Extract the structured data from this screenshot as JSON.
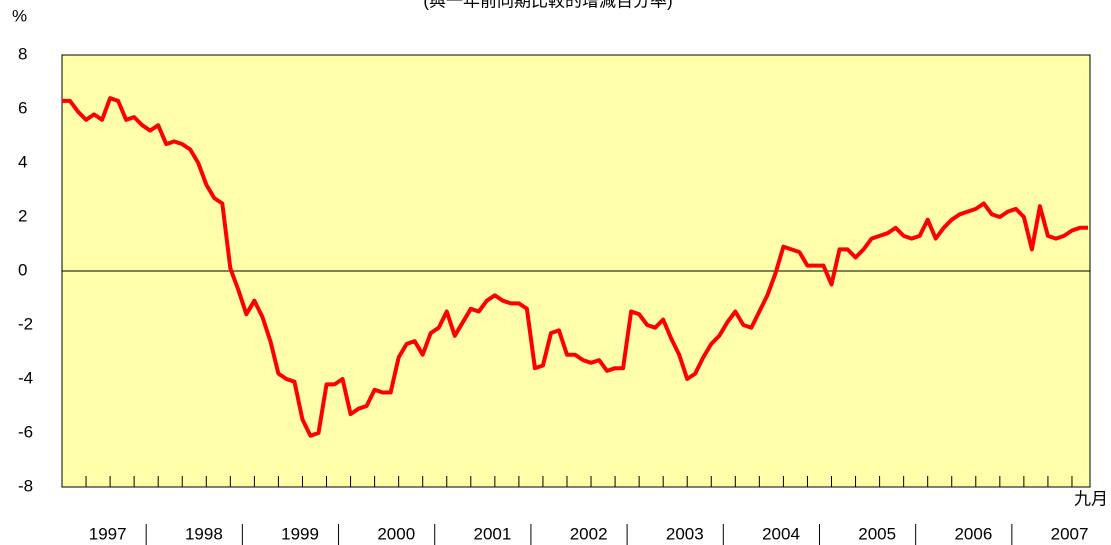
{
  "chart_data": {
    "type": "line",
    "title": "(與一年前同期比較的增減百分率)",
    "y_unit": "%",
    "end_label": "九月",
    "categories": [
      null,
      null,
      null,
      null,
      null,
      "1997",
      null,
      null,
      null,
      null,
      null,
      null,
      null,
      null,
      null,
      null,
      null,
      "1998",
      null,
      null,
      null,
      null,
      null,
      null,
      null,
      null,
      null,
      null,
      null,
      "1999",
      null,
      null,
      null,
      null,
      null,
      null,
      null,
      null,
      null,
      null,
      null,
      "2000",
      null,
      null,
      null,
      null,
      null,
      null,
      null,
      null,
      null,
      null,
      null,
      "2001",
      null,
      null,
      null,
      null,
      null,
      null,
      null,
      null,
      null,
      null,
      null,
      "2002",
      null,
      null,
      null,
      null,
      null,
      null,
      null,
      null,
      null,
      null,
      null,
      "2003",
      null,
      null,
      null,
      null,
      null,
      null,
      null,
      null,
      null,
      null,
      null,
      "2004",
      null,
      null,
      null,
      null,
      null,
      null,
      null,
      null,
      null,
      null,
      null,
      "2005",
      null,
      null,
      null,
      null,
      null,
      null,
      null,
      null,
      null,
      null,
      null,
      "2006",
      null,
      null,
      null,
      null,
      null,
      null,
      null,
      null,
      null,
      null,
      null,
      "2007",
      null,
      null,
      null
    ],
    "values": [
      6.3,
      6.3,
      5.9,
      5.6,
      5.8,
      5.6,
      6.4,
      6.3,
      5.6,
      5.7,
      5.4,
      5.2,
      5.4,
      4.7,
      4.8,
      4.7,
      4.5,
      4.0,
      3.2,
      2.7,
      2.5,
      0.1,
      -0.7,
      -1.6,
      -1.1,
      -1.7,
      -2.6,
      -3.8,
      -4.0,
      -4.1,
      -5.5,
      -6.1,
      -6.0,
      -4.2,
      -4.2,
      -4.0,
      -5.3,
      -5.1,
      -5.0,
      -4.4,
      -4.5,
      -4.5,
      -3.2,
      -2.7,
      -2.6,
      -3.1,
      -2.3,
      -2.1,
      -1.5,
      -2.4,
      -1.9,
      -1.4,
      -1.5,
      -1.1,
      -0.9,
      -1.1,
      -1.2,
      -1.2,
      -1.4,
      -3.6,
      -3.5,
      -2.3,
      -2.2,
      -3.1,
      -3.1,
      -3.3,
      -3.4,
      -3.3,
      -3.7,
      -3.6,
      -3.6,
      -1.5,
      -1.6,
      -2.0,
      -2.1,
      -1.8,
      -2.5,
      -3.1,
      -4.0,
      -3.8,
      -3.2,
      -2.7,
      -2.4,
      -1.9,
      -1.5,
      -2.0,
      -2.1,
      -1.5,
      -0.9,
      -0.1,
      0.9,
      0.8,
      0.7,
      0.2,
      0.2,
      0.2,
      -0.5,
      0.8,
      0.8,
      0.5,
      0.8,
      1.2,
      1.3,
      1.4,
      1.6,
      1.3,
      1.2,
      1.3,
      1.9,
      1.2,
      1.6,
      1.9,
      2.1,
      2.2,
      2.3,
      2.5,
      2.1,
      2.0,
      2.2,
      2.3,
      2.0,
      0.8,
      2.4,
      1.3,
      1.2,
      1.3,
      1.5,
      1.6,
      1.6
    ],
    "color": "#ff0000",
    "background": "#ffffaa",
    "ylim": [
      -8,
      8
    ],
    "yticks": [
      -8,
      -6,
      -4,
      -2,
      0,
      2,
      4,
      6,
      8
    ]
  }
}
